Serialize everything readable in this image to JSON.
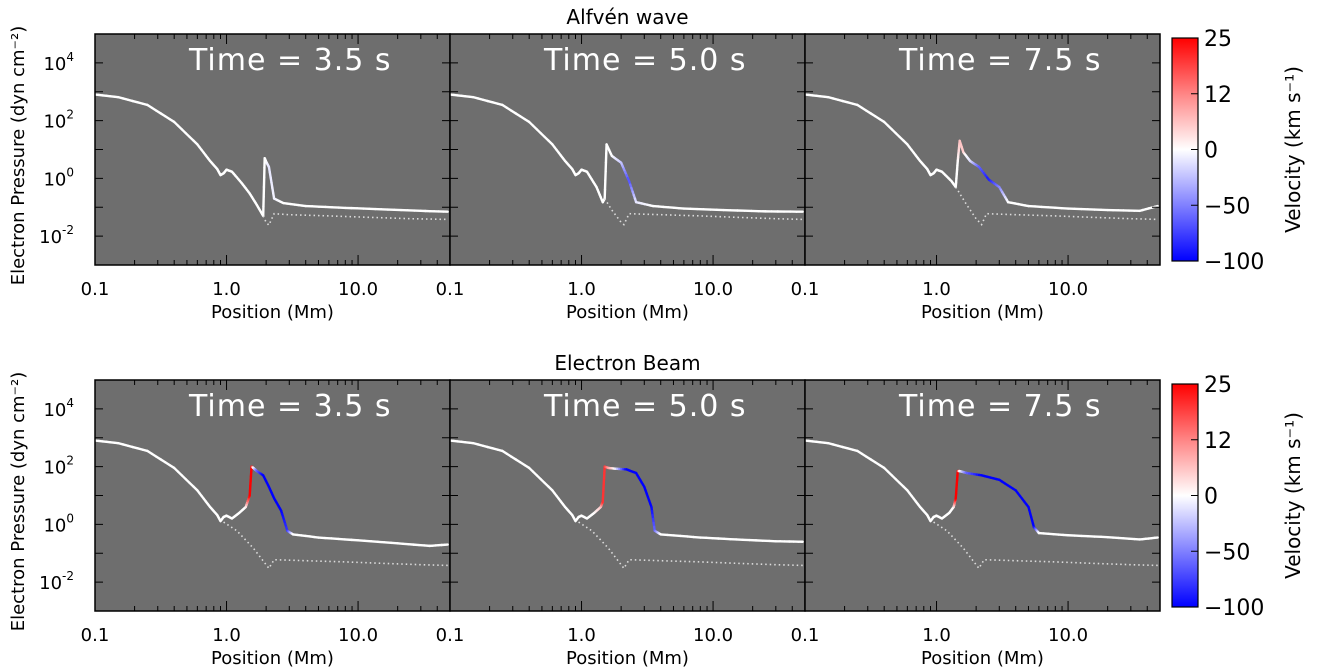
{
  "colors": {
    "panel_bg": "#6e6e6e",
    "line": "#ffffff",
    "dotted": "#dcdcdc",
    "vel_pos": "#ff0000",
    "vel_zero": "#ffffff",
    "vel_neg": "#0000ff"
  },
  "chart_data": [
    {
      "type": "line",
      "title": "Alfvén wave",
      "xlabel": "Position (Mm)",
      "ylabel": "Electron Pressure (dyn cm⁻²)",
      "xscale": "log",
      "yscale": "log",
      "xlim": [
        0.1,
        50
      ],
      "ylim": [
        0.001,
        100000
      ],
      "xticks": [
        {
          "v": 0.1,
          "label": "0.1"
        },
        {
          "v": 1,
          "label": "1.0"
        },
        {
          "v": 10,
          "label": "10.0"
        }
      ],
      "yticks": [
        {
          "v": 0.01,
          "base": "10",
          "exp": "-2"
        },
        {
          "v": 1,
          "base": "10",
          "exp": "0"
        },
        {
          "v": 100,
          "base": "10",
          "exp": "2"
        },
        {
          "v": 10000,
          "base": "10",
          "exp": "4"
        }
      ],
      "panels": [
        {
          "time_label": "Time = 3.5 s",
          "series": [
            {
              "x": [
                0.1,
                0.15,
                0.25,
                0.4,
                0.6,
                0.75,
                0.85,
                0.9,
                0.95,
                1.0,
                1.1,
                1.3,
                1.5,
                1.7,
                1.9,
                1.95,
                2.0,
                2.1,
                2.3,
                2.7,
                4,
                8,
                15,
                30,
                48
              ],
              "y": [
                800,
                650,
                350,
                90,
                15,
                4,
                2.1,
                1.3,
                1.5,
                2.0,
                1.7,
                0.7,
                0.3,
                0.12,
                0.05,
                5,
                3.8,
                2.5,
                0.2,
                0.14,
                0.11,
                0.095,
                0.085,
                0.075,
                0.07
              ],
              "v": [
                0,
                0,
                0,
                0,
                0,
                0,
                0,
                0,
                0,
                0,
                0,
                0,
                0,
                0,
                0,
                0,
                0,
                -10,
                -5,
                0,
                0,
                0,
                0,
                0,
                0
              ]
            },
            {
              "style": "dotted",
              "x": [
                1.9,
                2.0,
                2.1,
                2.3,
                3,
                6,
                12,
                25,
                48
              ],
              "y": [
                0.05,
                0.03,
                0.024,
                0.06,
                0.055,
                0.05,
                0.045,
                0.04,
                0.038
              ]
            }
          ]
        },
        {
          "time_label": "Time = 5.0 s",
          "series": [
            {
              "x": [
                0.1,
                0.15,
                0.25,
                0.4,
                0.6,
                0.75,
                0.85,
                0.9,
                0.95,
                1.0,
                1.1,
                1.3,
                1.45,
                1.5,
                1.55,
                1.7,
                2.0,
                2.3,
                2.6,
                3.5,
                6,
                12,
                25,
                48
              ],
              "y": [
                800,
                650,
                350,
                90,
                15,
                4,
                2.1,
                1.3,
                1.5,
                2.0,
                1.7,
                0.5,
                0.15,
                0.2,
                15,
                6,
                3.5,
                0.8,
                0.15,
                0.11,
                0.09,
                0.08,
                0.072,
                0.07
              ],
              "v": [
                0,
                0,
                0,
                0,
                0,
                0,
                0,
                0,
                0,
                0,
                0,
                0,
                0,
                0,
                0,
                0,
                -20,
                -70,
                -10,
                0,
                0,
                0,
                0,
                0
              ]
            },
            {
              "style": "dotted",
              "x": [
                1.5,
                1.7,
                2.0,
                2.1,
                2.3,
                4,
                8,
                15,
                30,
                48
              ],
              "y": [
                0.2,
                0.08,
                0.03,
                0.025,
                0.06,
                0.055,
                0.05,
                0.045,
                0.04,
                0.038
              ]
            }
          ]
        },
        {
          "time_label": "Time = 7.5 s",
          "series": [
            {
              "x": [
                0.1,
                0.15,
                0.25,
                0.4,
                0.6,
                0.75,
                0.85,
                0.9,
                0.95,
                1.0,
                1.1,
                1.3,
                1.4,
                1.45,
                1.5,
                1.6,
                1.8,
                2.1,
                2.5,
                3.0,
                3.5,
                5,
                10,
                20,
                35,
                48
              ],
              "y": [
                800,
                650,
                350,
                90,
                15,
                4,
                2.1,
                1.3,
                1.5,
                2.0,
                1.7,
                0.8,
                0.5,
                4,
                20,
                8,
                4,
                2.5,
                0.9,
                0.5,
                0.15,
                0.11,
                0.09,
                0.08,
                0.075,
                0.11
              ],
              "v": [
                0,
                0,
                0,
                0,
                0,
                0,
                0,
                0,
                0,
                0,
                0,
                0,
                0,
                0,
                6,
                5,
                -10,
                -60,
                -90,
                -50,
                0,
                0,
                0,
                0,
                0,
                0
              ]
            },
            {
              "style": "dotted",
              "x": [
                1.4,
                1.7,
                2.0,
                2.2,
                2.4,
                4,
                8,
                15,
                30,
                48
              ],
              "y": [
                0.5,
                0.12,
                0.04,
                0.025,
                0.06,
                0.055,
                0.05,
                0.045,
                0.04,
                0.038
              ]
            }
          ]
        }
      ]
    },
    {
      "type": "line",
      "title": "Electron Beam",
      "xlabel": "Position (Mm)",
      "ylabel": "Electron Pressure (dyn cm⁻²)",
      "xscale": "log",
      "yscale": "log",
      "xlim": [
        0.1,
        50
      ],
      "ylim": [
        0.001,
        100000
      ],
      "xticks": [
        {
          "v": 0.1,
          "label": "0.1"
        },
        {
          "v": 1,
          "label": "1.0"
        },
        {
          "v": 10,
          "label": "10.0"
        }
      ],
      "yticks": [
        {
          "v": 0.01,
          "base": "10",
          "exp": "-2"
        },
        {
          "v": 1,
          "base": "10",
          "exp": "0"
        },
        {
          "v": 100,
          "base": "10",
          "exp": "2"
        },
        {
          "v": 10000,
          "base": "10",
          "exp": "4"
        }
      ],
      "panels": [
        {
          "time_label": "Time = 3.5 s",
          "series": [
            {
              "x": [
                0.1,
                0.15,
                0.25,
                0.4,
                0.6,
                0.75,
                0.85,
                0.9,
                0.95,
                1.0,
                1.1,
                1.25,
                1.4,
                1.5,
                1.55,
                1.6,
                1.7,
                1.9,
                2.1,
                2.3,
                2.6,
                2.9,
                3.2,
                5,
                10,
                20,
                35,
                48
              ],
              "y": [
                800,
                650,
                350,
                90,
                15,
                4,
                2.1,
                1.3,
                1.8,
                2.0,
                1.6,
                2.5,
                4,
                10,
                100,
                90,
                70,
                50,
                20,
                8,
                3,
                0.6,
                0.45,
                0.35,
                0.28,
                0.22,
                0.18,
                0.2
              ],
              "v": [
                0,
                0,
                0,
                0,
                0,
                0,
                0,
                0,
                0,
                0,
                0,
                0,
                0,
                25,
                25,
                0,
                -60,
                -100,
                -100,
                -100,
                -100,
                -80,
                0,
                0,
                0,
                0,
                0,
                0
              ]
            },
            {
              "style": "dotted",
              "x": [
                0.95,
                1.2,
                1.6,
                2.0,
                2.1,
                2.3,
                4,
                8,
                15,
                30,
                48
              ],
              "y": [
                1.2,
                0.6,
                0.15,
                0.04,
                0.03,
                0.06,
                0.055,
                0.05,
                0.045,
                0.04,
                0.038
              ]
            }
          ]
        },
        {
          "time_label": "Time = 5.0 s",
          "series": [
            {
              "x": [
                0.1,
                0.15,
                0.25,
                0.4,
                0.6,
                0.75,
                0.85,
                0.9,
                0.95,
                1.0,
                1.1,
                1.25,
                1.4,
                1.45,
                1.5,
                1.6,
                1.8,
                2.2,
                2.6,
                3.0,
                3.4,
                3.6,
                4,
                8,
                15,
                30,
                48
              ],
              "y": [
                800,
                650,
                350,
                90,
                15,
                4,
                2.1,
                1.3,
                1.8,
                2.0,
                1.6,
                2.5,
                4,
                6,
                100,
                90,
                85,
                80,
                60,
                20,
                4,
                0.6,
                0.45,
                0.35,
                0.3,
                0.26,
                0.25
              ],
              "v": [
                0,
                0,
                0,
                0,
                0,
                0,
                0,
                0,
                0,
                0,
                0,
                0,
                5,
                20,
                20,
                10,
                0,
                -100,
                -100,
                -100,
                -100,
                -60,
                0,
                0,
                0,
                0,
                0
              ]
            },
            {
              "style": "dotted",
              "x": [
                0.95,
                1.2,
                1.6,
                2.0,
                2.1,
                2.3,
                4,
                8,
                15,
                30,
                48
              ],
              "y": [
                1.2,
                0.6,
                0.15,
                0.04,
                0.03,
                0.06,
                0.055,
                0.05,
                0.045,
                0.04,
                0.038
              ]
            }
          ]
        },
        {
          "time_label": "Time = 7.5 s",
          "series": [
            {
              "x": [
                0.1,
                0.15,
                0.25,
                0.4,
                0.6,
                0.75,
                0.85,
                0.9,
                0.95,
                1.0,
                1.1,
                1.25,
                1.35,
                1.4,
                1.45,
                1.5,
                1.7,
                2.2,
                3,
                4,
                5,
                5.5,
                6,
                10,
                20,
                35,
                48
              ],
              "y": [
                800,
                650,
                350,
                90,
                15,
                4,
                2.1,
                1.3,
                1.8,
                2.0,
                1.6,
                2.5,
                4,
                8,
                70,
                70,
                60,
                50,
                35,
                15,
                4,
                0.8,
                0.5,
                0.42,
                0.36,
                0.3,
                0.35
              ],
              "v": [
                0,
                0,
                0,
                0,
                0,
                0,
                0,
                0,
                0,
                0,
                0,
                0,
                0,
                25,
                25,
                0,
                -60,
                -100,
                -100,
                -100,
                -100,
                -100,
                0,
                0,
                0,
                0,
                0
              ]
            },
            {
              "style": "dotted",
              "x": [
                0.95,
                1.2,
                1.6,
                2.0,
                2.1,
                2.3,
                4,
                8,
                15,
                30,
                48
              ],
              "y": [
                1.2,
                0.6,
                0.15,
                0.04,
                0.03,
                0.06,
                0.055,
                0.05,
                0.045,
                0.04,
                0.038
              ]
            }
          ]
        }
      ]
    }
  ],
  "colorbar": {
    "label": "Velocity (km s⁻¹)",
    "ticks": [
      {
        "v": 25,
        "label": "25"
      },
      {
        "v": 12,
        "label": "12"
      },
      {
        "v": 0,
        "label": "0"
      },
      {
        "v": -50,
        "label": "−50"
      },
      {
        "v": -100,
        "label": "−100"
      }
    ],
    "range": [
      -100,
      25
    ]
  }
}
